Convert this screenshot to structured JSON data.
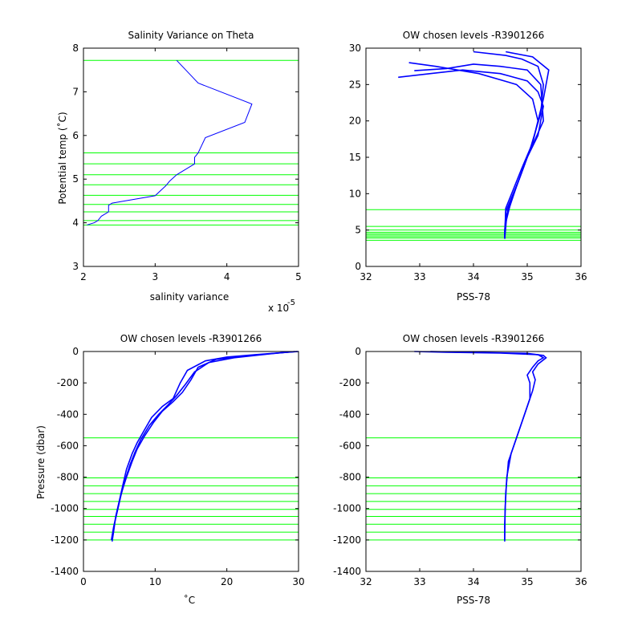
{
  "colors": {
    "profile": "#0000ff",
    "level": "#00ff00",
    "axis": "#000000",
    "background": "#ffffff"
  },
  "chart_data": [
    {
      "type": "line",
      "title": "Salinity Variance on Theta",
      "xlabel": "salinity variance",
      "ylabel": "Potential temp (˚C)",
      "xexponent_label": "x 10",
      "xexponent_power": "-5",
      "xlim": [
        2,
        5
      ],
      "ylim": [
        3,
        8
      ],
      "xticks": [
        2,
        3,
        4,
        5
      ],
      "yticks": [
        3,
        4,
        5,
        6,
        7,
        8
      ],
      "series": [
        {
          "x": [
            3.3,
            3.6,
            4.35,
            4.25,
            3.7,
            3.6,
            3.55,
            3.55,
            3.3,
            3.2,
            3.15,
            3.0,
            2.4,
            2.35,
            2.35,
            2.25,
            2.2,
            2.15,
            2.05
          ],
          "y": [
            7.72,
            7.2,
            6.72,
            6.3,
            5.95,
            5.6,
            5.5,
            5.35,
            5.1,
            4.95,
            4.85,
            4.62,
            4.45,
            4.4,
            4.25,
            4.15,
            4.05,
            4.0,
            3.95
          ]
        }
      ],
      "hlines": [
        7.72,
        5.6,
        5.35,
        5.1,
        4.87,
        4.63,
        4.42,
        4.25,
        4.05,
        3.95
      ]
    },
    {
      "type": "line",
      "title": "OW chosen levels -R3901266",
      "xlabel": "PSS-78",
      "ylabel": "",
      "xlim": [
        32,
        36
      ],
      "ylim": [
        0,
        30
      ],
      "xticks": [
        32,
        33,
        34,
        35,
        36
      ],
      "yticks": [
        0,
        5,
        10,
        15,
        20,
        25,
        30
      ],
      "series": [
        {
          "x": [
            34.58,
            34.58,
            34.6,
            34.65,
            34.75,
            34.85,
            34.95,
            35.0,
            35.1,
            35.2,
            35.1,
            34.8,
            34.1,
            33.3,
            32.8
          ],
          "y": [
            3.8,
            5.0,
            6.5,
            8.0,
            10.0,
            12.0,
            14.0,
            15.0,
            17.0,
            20.0,
            23.0,
            25.0,
            26.5,
            27.5,
            28.0
          ]
        },
        {
          "x": [
            34.58,
            34.6,
            34.7,
            34.9,
            35.0,
            35.2,
            35.3,
            35.2,
            35.0,
            34.5,
            33.8,
            33.2,
            32.6
          ],
          "y": [
            3.8,
            6.0,
            9.0,
            13.0,
            15.0,
            18.0,
            22.0,
            24.0,
            25.5,
            26.5,
            27.0,
            26.5,
            26.0
          ]
        },
        {
          "x": [
            34.58,
            34.62,
            34.8,
            35.0,
            35.3,
            35.25,
            35.0,
            34.5,
            34.0,
            33.5,
            32.9
          ],
          "y": [
            3.8,
            7.0,
            11.0,
            15.0,
            20.0,
            25.0,
            27.0,
            27.5,
            27.8,
            27.2,
            26.9
          ]
        },
        {
          "x": [
            34.58,
            34.6,
            34.85,
            35.05,
            35.25,
            35.3,
            35.2,
            34.9,
            34.6,
            34.0
          ],
          "y": [
            3.8,
            7.5,
            12.0,
            16.0,
            21.0,
            25.0,
            27.5,
            28.5,
            29.0,
            29.5
          ]
        },
        {
          "x": [
            34.58,
            34.6,
            34.9,
            35.1,
            35.3,
            35.4,
            35.1,
            34.6
          ],
          "y": [
            3.8,
            8.0,
            13.5,
            17.0,
            23.0,
            27.0,
            28.8,
            29.5
          ]
        }
      ],
      "hlines": [
        7.8,
        5.5,
        5.0,
        4.7,
        4.5,
        4.3,
        4.1,
        3.9,
        3.6
      ]
    },
    {
      "type": "line",
      "title": "OW chosen levels -R3901266",
      "xlabel": "˚C",
      "ylabel": "Pressure (dbar)",
      "xlim": [
        0,
        30
      ],
      "ylim": [
        -1400,
        0
      ],
      "xticks": [
        0,
        10,
        20,
        30
      ],
      "yticks": [
        -1400,
        -1200,
        -1000,
        -800,
        -600,
        -400,
        -200,
        0
      ],
      "series": [
        {
          "x": [
            4.0,
            4.2,
            4.5,
            5.0,
            5.5,
            6.0,
            6.8,
            7.5,
            8.5,
            9.5,
            11.0,
            12.5,
            13.5,
            14.5,
            17.0,
            20.0,
            24.0,
            29.8
          ],
          "y": [
            -1210,
            -1150,
            -1050,
            -950,
            -850,
            -750,
            -650,
            -580,
            -500,
            -420,
            -350,
            -300,
            -200,
            -120,
            -60,
            -35,
            -20,
            0
          ]
        },
        {
          "x": [
            4.0,
            4.3,
            4.8,
            5.3,
            6.0,
            6.8,
            7.5,
            8.5,
            9.8,
            11.0,
            12.5,
            13.8,
            15.0,
            16.0,
            18.5,
            22.0,
            27.0,
            30.0
          ],
          "y": [
            -1200,
            -1100,
            -1000,
            -900,
            -800,
            -700,
            -620,
            -540,
            -450,
            -380,
            -320,
            -260,
            -180,
            -100,
            -50,
            -30,
            -10,
            0
          ]
        },
        {
          "x": [
            3.9,
            4.2,
            4.7,
            5.2,
            5.8,
            6.5,
            7.2,
            8.0,
            9.2,
            10.5,
            11.8,
            13.0,
            14.2,
            15.5,
            17.5,
            21.0,
            26.0,
            29.5
          ],
          "y": [
            -1200,
            -1120,
            -1020,
            -920,
            -820,
            -720,
            -640,
            -560,
            -470,
            -400,
            -340,
            -280,
            -210,
            -130,
            -70,
            -40,
            -15,
            0
          ]
        }
      ],
      "hlines": [
        -550,
        -805,
        -855,
        -905,
        -955,
        -1005,
        -1050,
        -1100,
        -1150,
        -1200
      ]
    },
    {
      "type": "line",
      "title": "OW chosen levels -R3901266",
      "xlabel": "PSS-78",
      "ylabel": "",
      "xlim": [
        32,
        36
      ],
      "ylim": [
        -1400,
        0
      ],
      "xticks": [
        32,
        33,
        34,
        35,
        36
      ],
      "yticks": [
        -1400,
        -1200,
        -1000,
        -800,
        -600,
        -400,
        -200,
        0
      ],
      "series": [
        {
          "x": [
            34.58,
            34.58,
            34.59,
            34.6,
            34.65,
            34.75,
            34.85,
            34.95,
            35.05,
            35.05,
            35.0,
            35.1,
            35.2,
            35.3,
            35.2,
            34.5,
            33.5,
            32.9
          ],
          "y": [
            -1210,
            -1100,
            -1000,
            -900,
            -700,
            -600,
            -500,
            -400,
            -300,
            -200,
            -150,
            -100,
            -60,
            -40,
            -20,
            -10,
            -5,
            0
          ]
        },
        {
          "x": [
            34.58,
            34.59,
            34.62,
            34.7,
            34.8,
            34.9,
            35.0,
            35.1,
            35.15,
            35.1,
            35.2,
            35.35,
            35.3,
            35.0,
            34.0,
            33.2
          ],
          "y": [
            -1200,
            -1000,
            -800,
            -650,
            -550,
            -450,
            -350,
            -250,
            -180,
            -130,
            -80,
            -40,
            -25,
            -12,
            -5,
            0
          ]
        }
      ],
      "hlines": [
        -550,
        -805,
        -855,
        -905,
        -955,
        -1005,
        -1050,
        -1100,
        -1150,
        -1200
      ]
    }
  ]
}
